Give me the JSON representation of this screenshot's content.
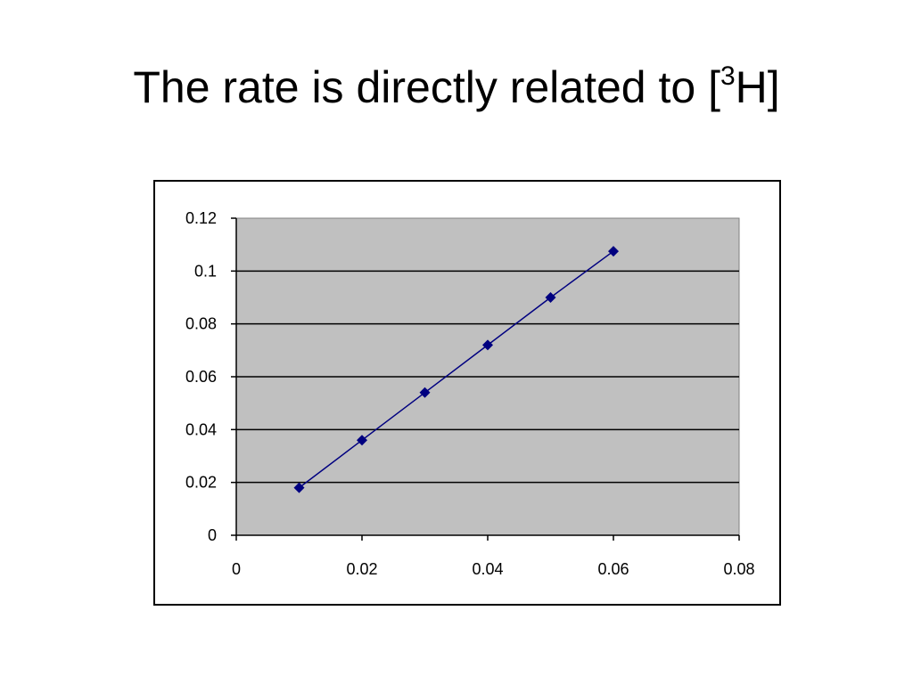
{
  "title": {
    "main": "The rate is directly related to [",
    "sup": "3",
    "tail": "H]"
  },
  "chart_data": {
    "type": "line",
    "title": "",
    "xlabel": "",
    "ylabel": "",
    "xlim": [
      0,
      0.08
    ],
    "ylim": [
      0,
      0.12
    ],
    "xticks": [
      0,
      0.02,
      0.04,
      0.06,
      0.08
    ],
    "yticks": [
      0,
      0.02,
      0.04,
      0.06,
      0.08,
      0.1,
      0.12
    ],
    "xtick_labels": [
      "0",
      "0.02",
      "0.04",
      "0.06",
      "0.08"
    ],
    "ytick_labels": [
      "0",
      "0.02",
      "0.04",
      "0.06",
      "0.08",
      "0.1",
      "0.12"
    ],
    "grid": {
      "horizontal": true,
      "vertical": false
    },
    "legend": "none",
    "marker": "diamond",
    "plot_background": "#C0C0C0",
    "series": [
      {
        "color": "#000080",
        "x": [
          0.01,
          0.02,
          0.03,
          0.04,
          0.05,
          0.06
        ],
        "y": [
          0.018,
          0.036,
          0.054,
          0.072,
          0.09,
          0.1075
        ]
      }
    ]
  }
}
